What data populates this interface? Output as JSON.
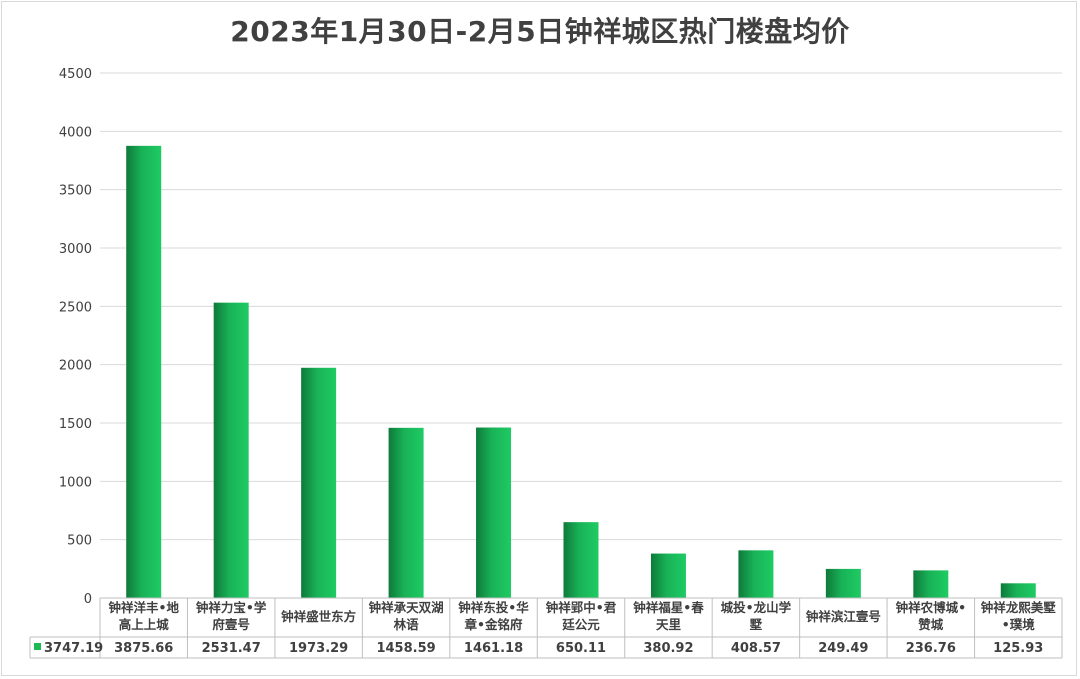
{
  "chart_data": {
    "type": "bar",
    "title": "2023年1月30日-2月5日钟祥城区热门楼盘均价",
    "categories": [
      [
        "钟祥洋丰•地",
        "高上上城"
      ],
      [
        "钟祥力宝•学",
        "府壹号"
      ],
      [
        "钟祥盛世东方"
      ],
      [
        "钟祥承天双湖",
        "林语"
      ],
      [
        "钟祥东投•华",
        "章•金铭府"
      ],
      [
        "钟祥郢中•君",
        "廷公元"
      ],
      [
        "钟祥福星•春",
        "天里"
      ],
      [
        "城投•龙山学",
        "墅"
      ],
      [
        "钟祥滨江壹号"
      ],
      [
        "钟祥农博城•",
        "赞城"
      ],
      [
        "钟祥龙熙美墅",
        "•璞境"
      ]
    ],
    "series": [
      {
        "name": "3747.19",
        "color": "#1db954",
        "values": [
          3875.66,
          2531.47,
          1973.29,
          1458.59,
          1461.18,
          650.11,
          380.92,
          408.57,
          249.49,
          236.76,
          125.93
        ],
        "value_labels": [
          "3875.66",
          "2531.47",
          "1973.29",
          "1458.59",
          "1461.18",
          "650.11",
          "380.92",
          "408.57",
          "249.49",
          "236.76",
          "125.93"
        ]
      }
    ],
    "ylim": [
      0,
      4500
    ],
    "yticks": [
      "0",
      "500",
      "1000",
      "1500",
      "2000",
      "2500",
      "3000",
      "3500",
      "4000",
      "4500"
    ],
    "grid": true,
    "data_table": true,
    "xlabel": "",
    "ylabel": ""
  }
}
